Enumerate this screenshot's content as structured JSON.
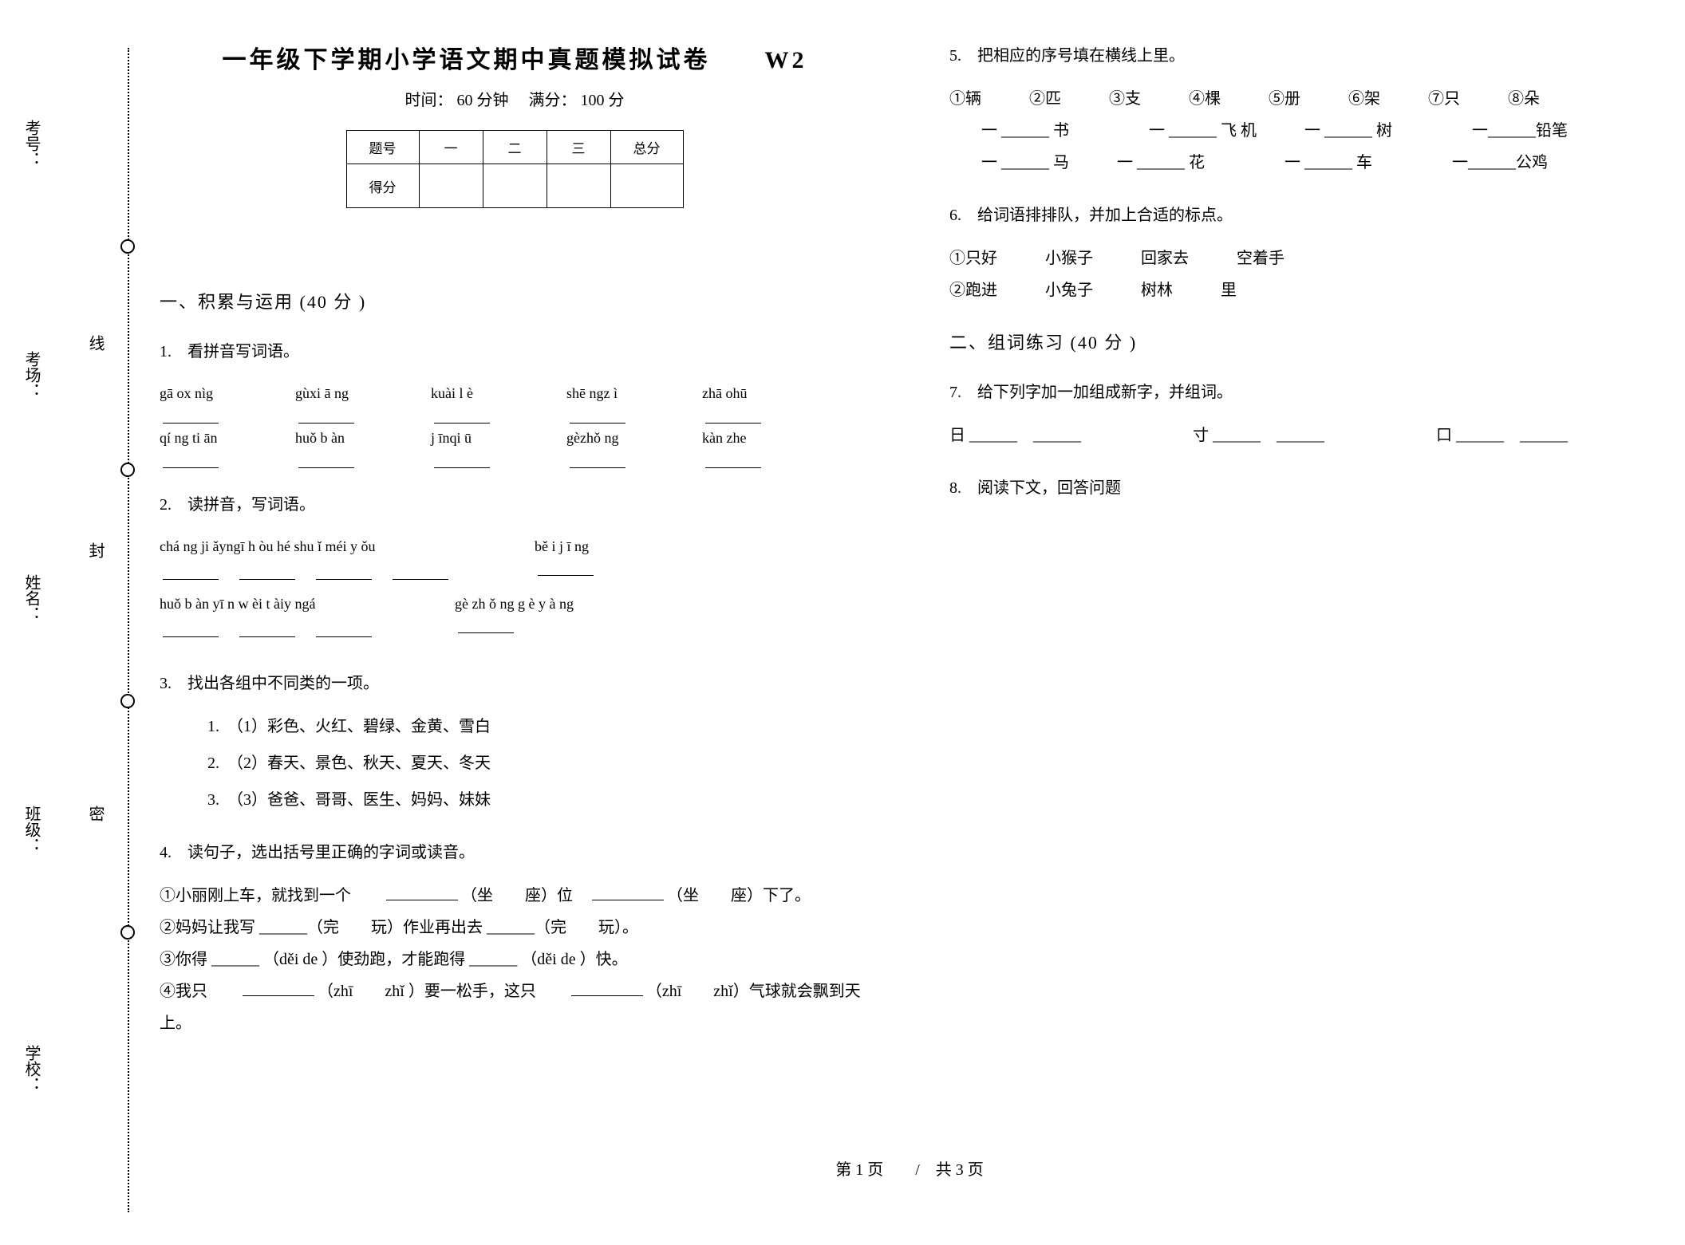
{
  "binding": {
    "labels": [
      "考号：",
      "考场：",
      "姓名：",
      "班级：",
      "学校："
    ],
    "seal_chars": [
      "线",
      "封",
      "密"
    ]
  },
  "header": {
    "title": "一年级下学期小学语文期中真题模拟试卷　　W2",
    "subtitle": "时间： 60 分钟　 满分： 100 分"
  },
  "score_table": {
    "cols": [
      "题号",
      "一",
      "二",
      "三",
      "总分"
    ],
    "row_label": "得分"
  },
  "section1": {
    "heading": "一、积累与运用  (40 分 )"
  },
  "q1": {
    "title": "1.　看拼音写词语。",
    "row1": [
      "gā ox nìg",
      "gùxi ā ng",
      "kuài l è",
      "shē ngz ì",
      "zhā ohū"
    ],
    "row2": [
      "qí ng ti ān",
      "huǒ b àn",
      "j īnqi ū",
      "gèzhǒ ng",
      "kàn  zhe"
    ]
  },
  "q2": {
    "title": "2.　读拼音，写词语。",
    "row1": [
      "chá ng ji    ǎyngī h òu    hé shu ǐ  méi y ǒu",
      "bě i j ī ng"
    ],
    "row2": [
      "huǒ b àn  yī n w èi t àiy ngá",
      "gè zh ǒ ng g è y à ng"
    ]
  },
  "q3": {
    "title": "3.　找出各组中不同类的一项。",
    "items": [
      "1.　（1）彩色、火红、碧绿、金黄、雪白",
      "2.　（2）春天、景色、秋天、夏天、冬天",
      "3.　（3）爸爸、哥哥、医生、妈妈、妹妹"
    ]
  },
  "q4": {
    "title": "4.　读句子，选出括号里正确的字词或读音。",
    "lines": [
      "①小丽刚上车，就找到一个　　<u>　　</u>（坐　　座）位　<u>　　</u>（坐　　座）下了。",
      "②妈妈让我写  ______（完　　玩）作业再出去  ______（完　　玩）。",
      "③你得  ______ （děi de ）使劲跑，才能跑得  ______ （děi de ）快。",
      "④我只　　<u>　　</u>（zhī　　zhǐ ）要一松手，这只　　<u>　　</u>（zhī　　zhǐ）气球就会飘到天上。"
    ]
  },
  "q5": {
    "title": "5.　把相应的序号填在横线上里。",
    "options": "①辆　　　②匹　　　③支　　　④棵　　　⑤册　　　⑥架　　　⑦只　　　⑧朵",
    "row1": "　　一  ______  书　　　　　一  ______  飞  机　　　一  ______  树　　　　　一______铅笔",
    "row2": "　　一  ______  马　　　一  ______  花　　　　　一  ______  车　　　　　一______公鸡"
  },
  "q6": {
    "title": "6.　给词语排排队，并加上合适的标点。",
    "l1": "①只好　　　小猴子　　　回家去　　　空着手",
    "l2": "②跑进　　　小兔子　　　树林　　　里"
  },
  "section2": {
    "heading": "二、组词练习  (40 分 )"
  },
  "q7": {
    "title": "7.　给下列字加一加组成新字，并组词。",
    "line": "日 ______　______　　　　　　　寸 ______　______　　　　　　　口 ______　______"
  },
  "q8": {
    "title": "8.　阅读下文，回答问题"
  },
  "footer": {
    "text": "第 1 页　　/　共 3 页"
  }
}
